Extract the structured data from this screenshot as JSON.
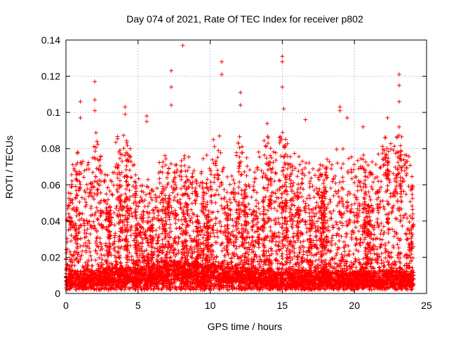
{
  "chart_data": {
    "type": "scatter",
    "title": "Day 074 of 2021, Rate Of TEC Index for receiver p802",
    "xlabel": "GPS time / hours",
    "ylabel": "ROTI / TECUs",
    "xlim": [
      0,
      25
    ],
    "ylim": [
      0,
      0.14
    ],
    "x_ticks": [
      "0",
      "5",
      "10",
      "15",
      "20",
      "25"
    ],
    "y_ticks": [
      "0",
      "0.02",
      "0.04",
      "0.06",
      "0.08",
      "0.1",
      "0.12",
      "0.14"
    ],
    "grid": true,
    "legend": "none",
    "marker": "plus",
    "series_color": "#ff0000",
    "outliers": [
      {
        "x": 8.1,
        "y": 0.137
      },
      {
        "x": 7.3,
        "y": 0.123
      },
      {
        "x": 7.3,
        "y": 0.114
      },
      {
        "x": 7.3,
        "y": 0.104
      },
      {
        "x": 2.0,
        "y": 0.117
      },
      {
        "x": 2.0,
        "y": 0.107
      },
      {
        "x": 2.0,
        "y": 0.101
      },
      {
        "x": 1.0,
        "y": 0.106
      },
      {
        "x": 1.0,
        "y": 0.097
      },
      {
        "x": 4.1,
        "y": 0.103
      },
      {
        "x": 4.1,
        "y": 0.099
      },
      {
        "x": 5.6,
        "y": 0.098
      },
      {
        "x": 5.6,
        "y": 0.095
      },
      {
        "x": 10.8,
        "y": 0.128
      },
      {
        "x": 10.8,
        "y": 0.121
      },
      {
        "x": 12.1,
        "y": 0.111
      },
      {
        "x": 12.1,
        "y": 0.104
      },
      {
        "x": 15.0,
        "y": 0.131
      },
      {
        "x": 15.0,
        "y": 0.128
      },
      {
        "x": 15.0,
        "y": 0.114
      },
      {
        "x": 15.1,
        "y": 0.102
      },
      {
        "x": 19.0,
        "y": 0.103
      },
      {
        "x": 19.0,
        "y": 0.101
      },
      {
        "x": 19.5,
        "y": 0.097
      },
      {
        "x": 22.3,
        "y": 0.097
      },
      {
        "x": 23.1,
        "y": 0.121
      },
      {
        "x": 23.1,
        "y": 0.115
      },
      {
        "x": 23.1,
        "y": 0.106
      },
      {
        "x": 23.1,
        "y": 0.092
      },
      {
        "x": 16.6,
        "y": 0.096
      },
      {
        "x": 20.6,
        "y": 0.092
      }
    ],
    "envelope": {
      "x": [
        0,
        0.5,
        1,
        1.5,
        2,
        2.5,
        3,
        3.5,
        4,
        4.5,
        5,
        5.5,
        6,
        6.5,
        7,
        7.5,
        8,
        8.5,
        9,
        9.5,
        10,
        10.5,
        11,
        11.5,
        12,
        12.5,
        13,
        13.5,
        14,
        14.5,
        15,
        15.5,
        16,
        16.5,
        17,
        17.5,
        18,
        18.5,
        19,
        19.5,
        20,
        20.5,
        21,
        21.5,
        22,
        22.5,
        23,
        23.5,
        24
      ],
      "upper": [
        0.05,
        0.07,
        0.085,
        0.065,
        0.09,
        0.07,
        0.06,
        0.08,
        0.09,
        0.075,
        0.06,
        0.065,
        0.05,
        0.065,
        0.07,
        0.075,
        0.065,
        0.07,
        0.06,
        0.07,
        0.07,
        0.085,
        0.07,
        0.065,
        0.085,
        0.07,
        0.06,
        0.08,
        0.09,
        0.075,
        0.09,
        0.08,
        0.07,
        0.075,
        0.065,
        0.07,
        0.07,
        0.075,
        0.08,
        0.07,
        0.075,
        0.08,
        0.07,
        0.08,
        0.085,
        0.08,
        0.09,
        0.085,
        0.065
      ],
      "baseline": [
        0.004,
        0.005,
        0.004,
        0.006,
        0.005,
        0.006,
        0.005,
        0.007,
        0.006,
        0.007,
        0.006,
        0.008,
        0.007,
        0.009,
        0.01,
        0.01,
        0.01,
        0.009,
        0.01,
        0.008,
        0.009,
        0.008,
        0.007,
        0.007,
        0.006,
        0.006,
        0.005,
        0.005,
        0.005,
        0.004,
        0.004,
        0.004,
        0.005,
        0.005,
        0.005,
        0.005,
        0.005,
        0.004,
        0.005,
        0.004,
        0.004,
        0.005,
        0.004,
        0.004,
        0.005,
        0.005,
        0.005,
        0.004,
        0.004
      ]
    },
    "approx_point_count": 6500
  }
}
